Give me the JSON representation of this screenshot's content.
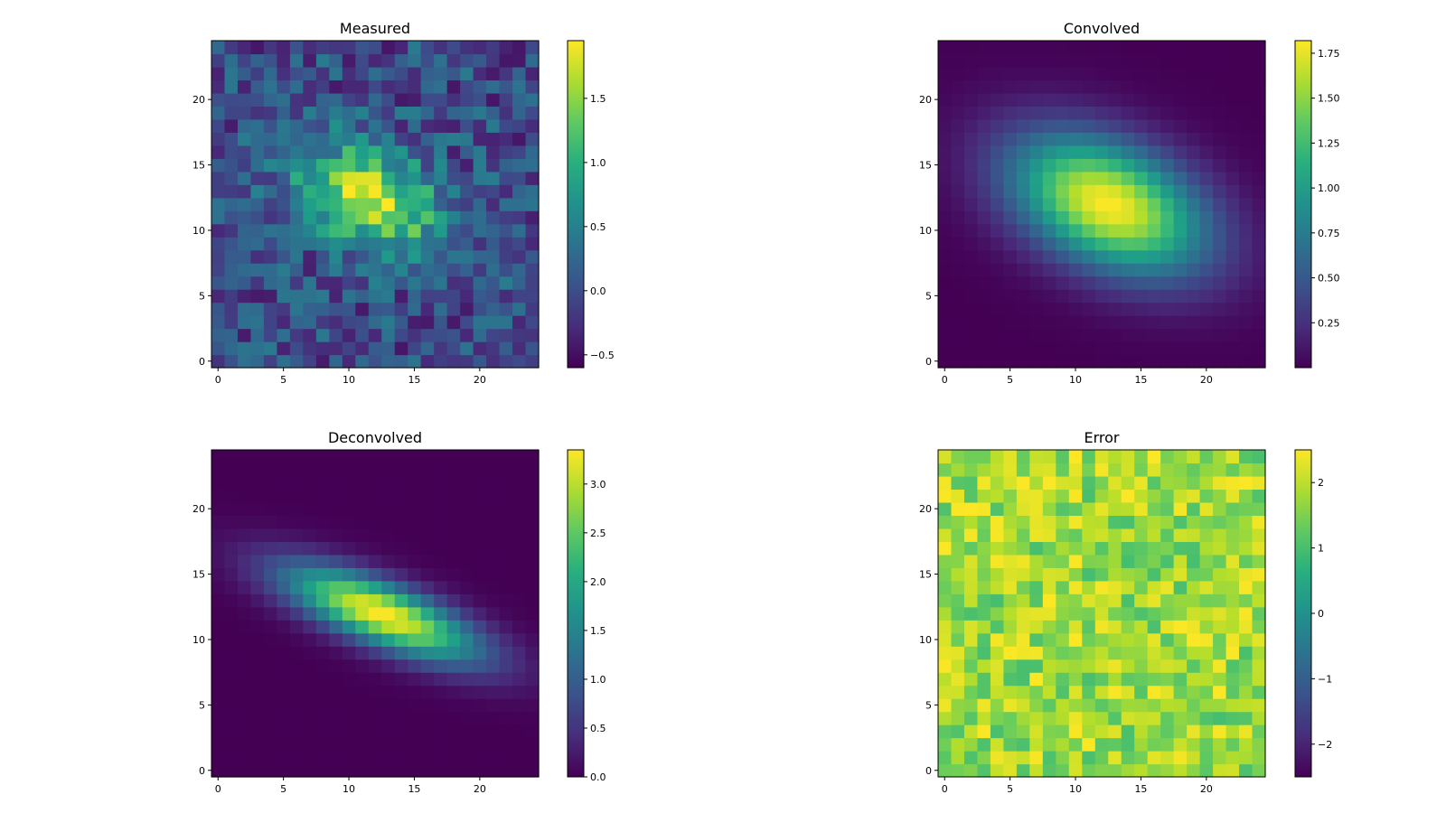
{
  "chart_data": [
    {
      "type": "heatmap",
      "title": "Measured",
      "grid_size": 25,
      "origin": "lower",
      "colormap": "viridis",
      "xticks": [
        0,
        5,
        10,
        15,
        20
      ],
      "yticks": [
        0,
        5,
        10,
        15,
        20
      ],
      "xtick_labels": [
        "0",
        "5",
        "10",
        "15",
        "20"
      ],
      "ytick_labels": [
        "0",
        "5",
        "10",
        "15",
        "20"
      ],
      "zrange": [
        -0.6,
        1.95
      ],
      "colorbar_ticks": [
        -0.5,
        0.0,
        0.5,
        1.0,
        1.5
      ],
      "colorbar_labels": [
        "−0.5",
        "0.0",
        "0.5",
        "1.0",
        "1.5"
      ],
      "model": {
        "kind": "gaussian_plus_noise",
        "amplitude": 1.75,
        "center": [
          11.5,
          12.5
        ],
        "sigma": [
          4.0,
          2.5
        ],
        "angle_deg": -25,
        "noise_amplitude": 0.45,
        "seed": 3
      },
      "grid": false
    },
    {
      "type": "heatmap",
      "title": "Convolved",
      "grid_size": 25,
      "origin": "lower",
      "colormap": "viridis",
      "xticks": [
        0,
        5,
        10,
        15,
        20
      ],
      "yticks": [
        0,
        5,
        10,
        15,
        20
      ],
      "xtick_labels": [
        "0",
        "5",
        "10",
        "15",
        "20"
      ],
      "ytick_labels": [
        "0",
        "5",
        "10",
        "15",
        "20"
      ],
      "zrange": [
        0.0,
        1.82
      ],
      "colorbar_ticks": [
        0.25,
        0.5,
        0.75,
        1.0,
        1.25,
        1.5,
        1.75
      ],
      "colorbar_labels": [
        "0.25",
        "0.50",
        "0.75",
        "1.00",
        "1.25",
        "1.50",
        "1.75"
      ],
      "model": {
        "kind": "gaussian",
        "amplitude": 1.82,
        "center": [
          12.5,
          12.0
        ],
        "sigma": [
          5.5,
          3.2
        ],
        "angle_deg": -25
      },
      "grid": false
    },
    {
      "type": "heatmap",
      "title": "Deconvolved",
      "grid_size": 25,
      "origin": "lower",
      "colormap": "viridis",
      "xticks": [
        0,
        5,
        10,
        15,
        20
      ],
      "yticks": [
        0,
        5,
        10,
        15,
        20
      ],
      "xtick_labels": [
        "0",
        "5",
        "10",
        "15",
        "20"
      ],
      "ytick_labels": [
        "0",
        "5",
        "10",
        "15",
        "20"
      ],
      "zrange": [
        0.0,
        3.35
      ],
      "colorbar_ticks": [
        0.0,
        0.5,
        1.0,
        1.5,
        2.0,
        2.5,
        3.0
      ],
      "colorbar_labels": [
        "0.0",
        "0.5",
        "1.0",
        "1.5",
        "2.0",
        "2.5",
        "3.0"
      ],
      "model": {
        "kind": "gaussian",
        "amplitude": 3.35,
        "center": [
          12.5,
          12.0
        ],
        "sigma": [
          5.5,
          1.6
        ],
        "angle_deg": -22
      },
      "grid": false
    },
    {
      "type": "heatmap",
      "title": "Error",
      "grid_size": 25,
      "origin": "lower",
      "colormap": "viridis",
      "xticks": [
        0,
        5,
        10,
        15,
        20
      ],
      "yticks": [
        0,
        5,
        10,
        15,
        20
      ],
      "xtick_labels": [
        "0",
        "5",
        "10",
        "15",
        "20"
      ],
      "ytick_labels": [
        "0",
        "5",
        "10",
        "15",
        "20"
      ],
      "zrange": [
        -2.5,
        2.5
      ],
      "colorbar_ticks": [
        -2,
        -1,
        0,
        1,
        2
      ],
      "colorbar_labels": [
        "−2",
        "−1",
        "0",
        "1",
        "2"
      ],
      "model": {
        "kind": "uniform_noise",
        "range": [
          1.0,
          2.5
        ],
        "seed": 11
      },
      "grid": false
    }
  ]
}
